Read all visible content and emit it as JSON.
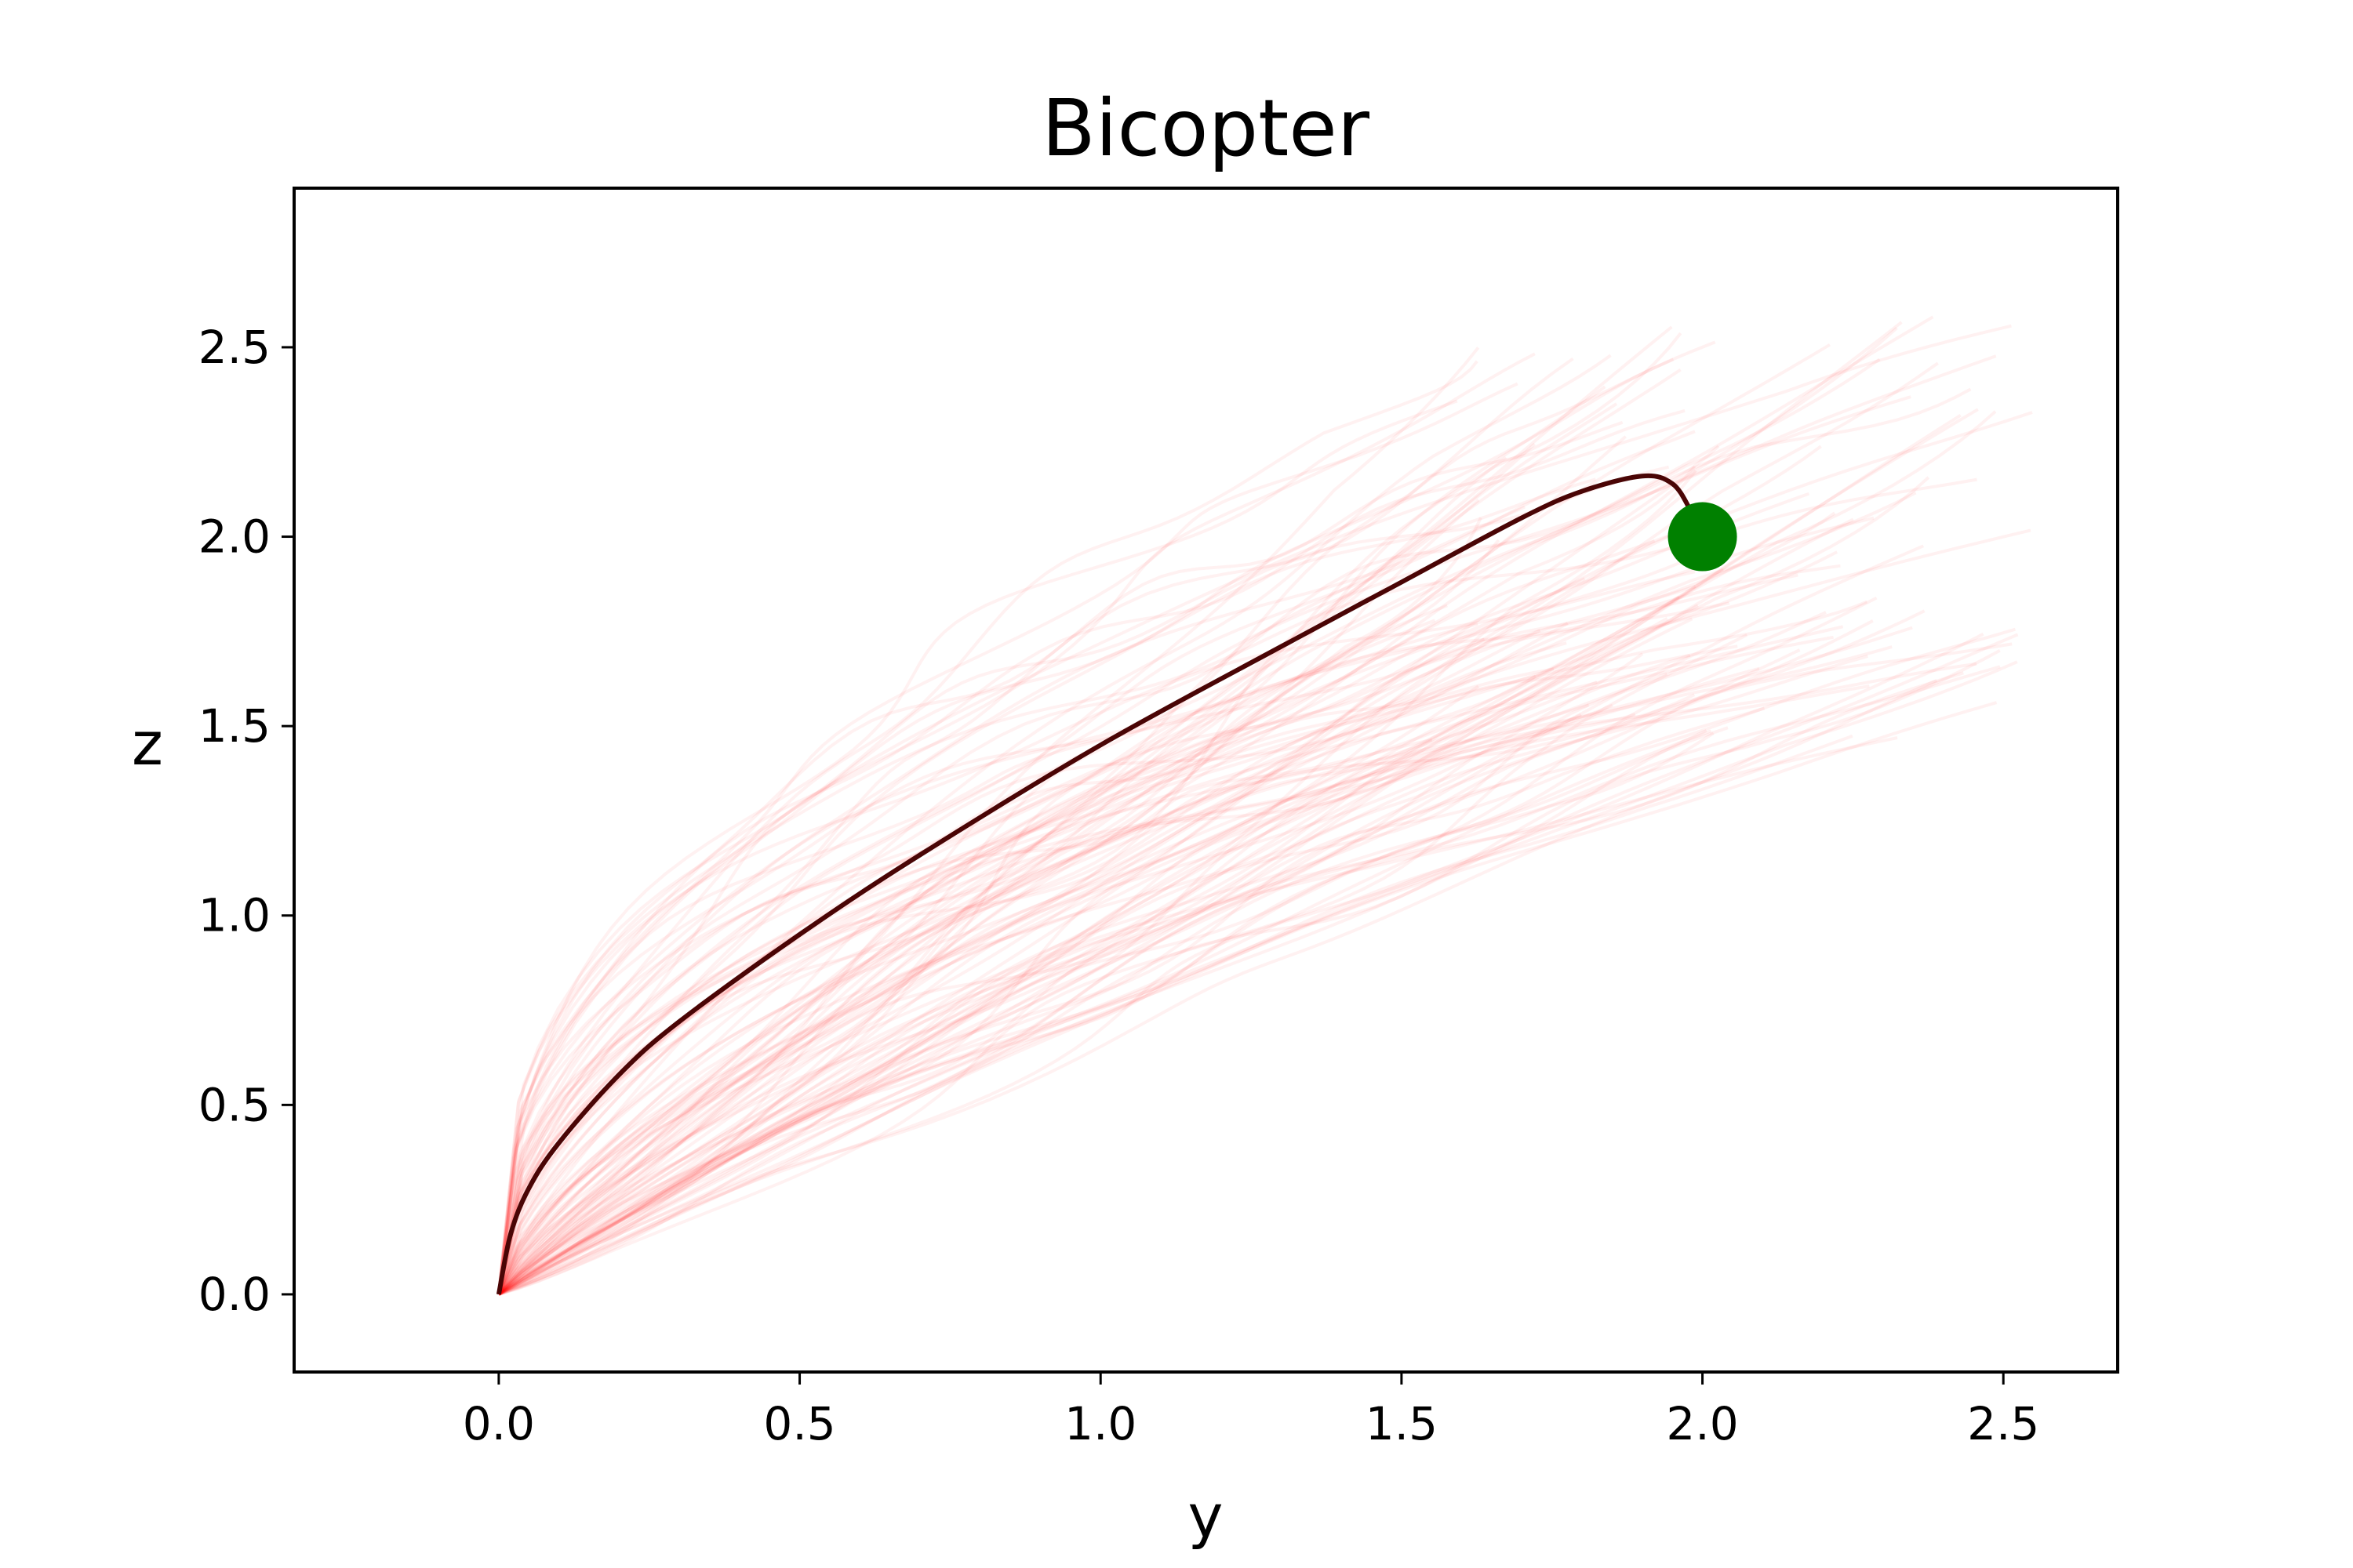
{
  "chart_data": {
    "type": "line",
    "title": "Bicopter",
    "xlabel": "y",
    "ylabel": "z",
    "xlim": [
      -0.34,
      2.69
    ],
    "ylim": [
      -0.205,
      2.92
    ],
    "xticks": [
      0.0,
      0.5,
      1.0,
      1.5,
      2.0,
      2.5
    ],
    "yticks": [
      0.0,
      0.5,
      1.0,
      1.5,
      2.0,
      2.5
    ],
    "xtick_labels": [
      "0.0",
      "0.5",
      "1.0",
      "1.5",
      "2.0",
      "2.5"
    ],
    "ytick_labels": [
      "0.0",
      "0.5",
      "1.0",
      "1.5",
      "2.0",
      "2.5"
    ],
    "grid": false,
    "legend": "none",
    "nominal_trajectory": {
      "color": "#4a0505",
      "x": [
        0.0,
        0.02,
        0.05,
        0.1,
        0.2,
        0.3,
        0.5,
        0.7,
        1.0,
        1.3,
        1.5,
        1.7,
        1.8,
        1.9,
        1.95,
        1.98,
        2.0
      ],
      "y": [
        0.0,
        0.16,
        0.28,
        0.4,
        0.58,
        0.72,
        0.95,
        1.16,
        1.45,
        1.71,
        1.88,
        2.05,
        2.12,
        2.16,
        2.14,
        2.07,
        2.0
      ]
    },
    "sample_trajectories": {
      "color": "#ff0000",
      "count": 120,
      "start": [
        0.0,
        0.0
      ],
      "end_spread_x": [
        1.55,
        2.55
      ],
      "end_spread_y": [
        1.45,
        2.6
      ]
    },
    "goal": {
      "x": 2.0,
      "y": 2.0,
      "color": "#008000"
    }
  }
}
